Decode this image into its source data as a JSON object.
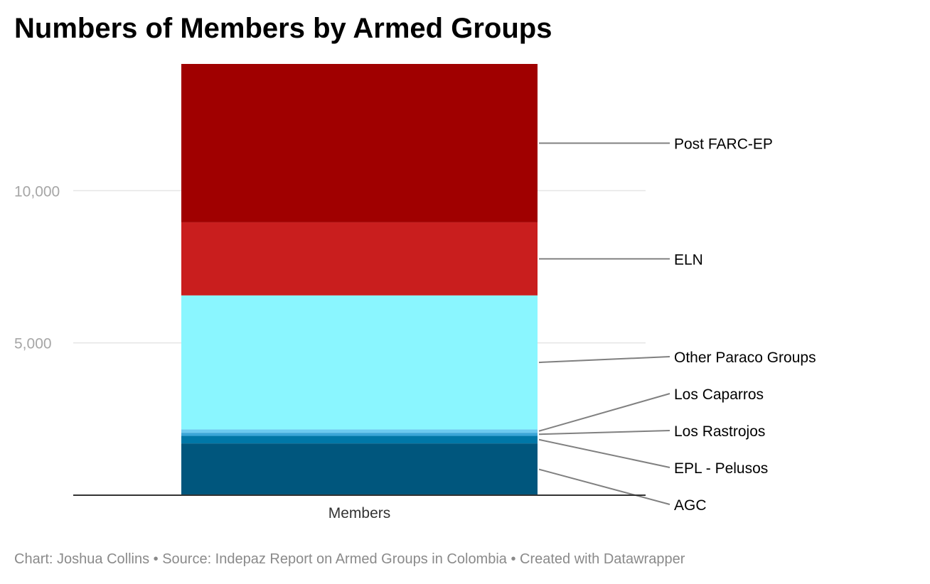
{
  "chart_data": {
    "type": "bar",
    "stacked": true,
    "title": "Numbers of Members by Armed Groups",
    "categories": [
      "Members"
    ],
    "series": [
      {
        "name": "AGC",
        "values": [
          1700
        ],
        "color": "#00567d"
      },
      {
        "name": "EPL - Pelusos",
        "values": [
          250
        ],
        "color": "#0077a7"
      },
      {
        "name": "Los Rastrojos",
        "values": [
          100
        ],
        "color": "#3aa6d8"
      },
      {
        "name": "Los Caparros",
        "values": [
          110
        ],
        "color": "#6cc9ef"
      },
      {
        "name": "Other Paraco Groups",
        "values": [
          4400
        ],
        "color": "#8af6ff"
      },
      {
        "name": "ELN",
        "values": [
          2400
        ],
        "color": "#c91e1e"
      },
      {
        "name": "Post FARC-EP",
        "values": [
          5200
        ],
        "color": "#a00000"
      }
    ],
    "yticks": [
      5000,
      10000
    ],
    "ytick_labels": [
      "5,000",
      "10,000"
    ],
    "ylim": [
      0,
      14160
    ],
    "grid": true,
    "xlabel": "",
    "ylabel": ""
  },
  "footer": "Chart: Joshua Collins • Source: Indepaz Report on Armed Groups in Colombia • Created with Datawrapper"
}
